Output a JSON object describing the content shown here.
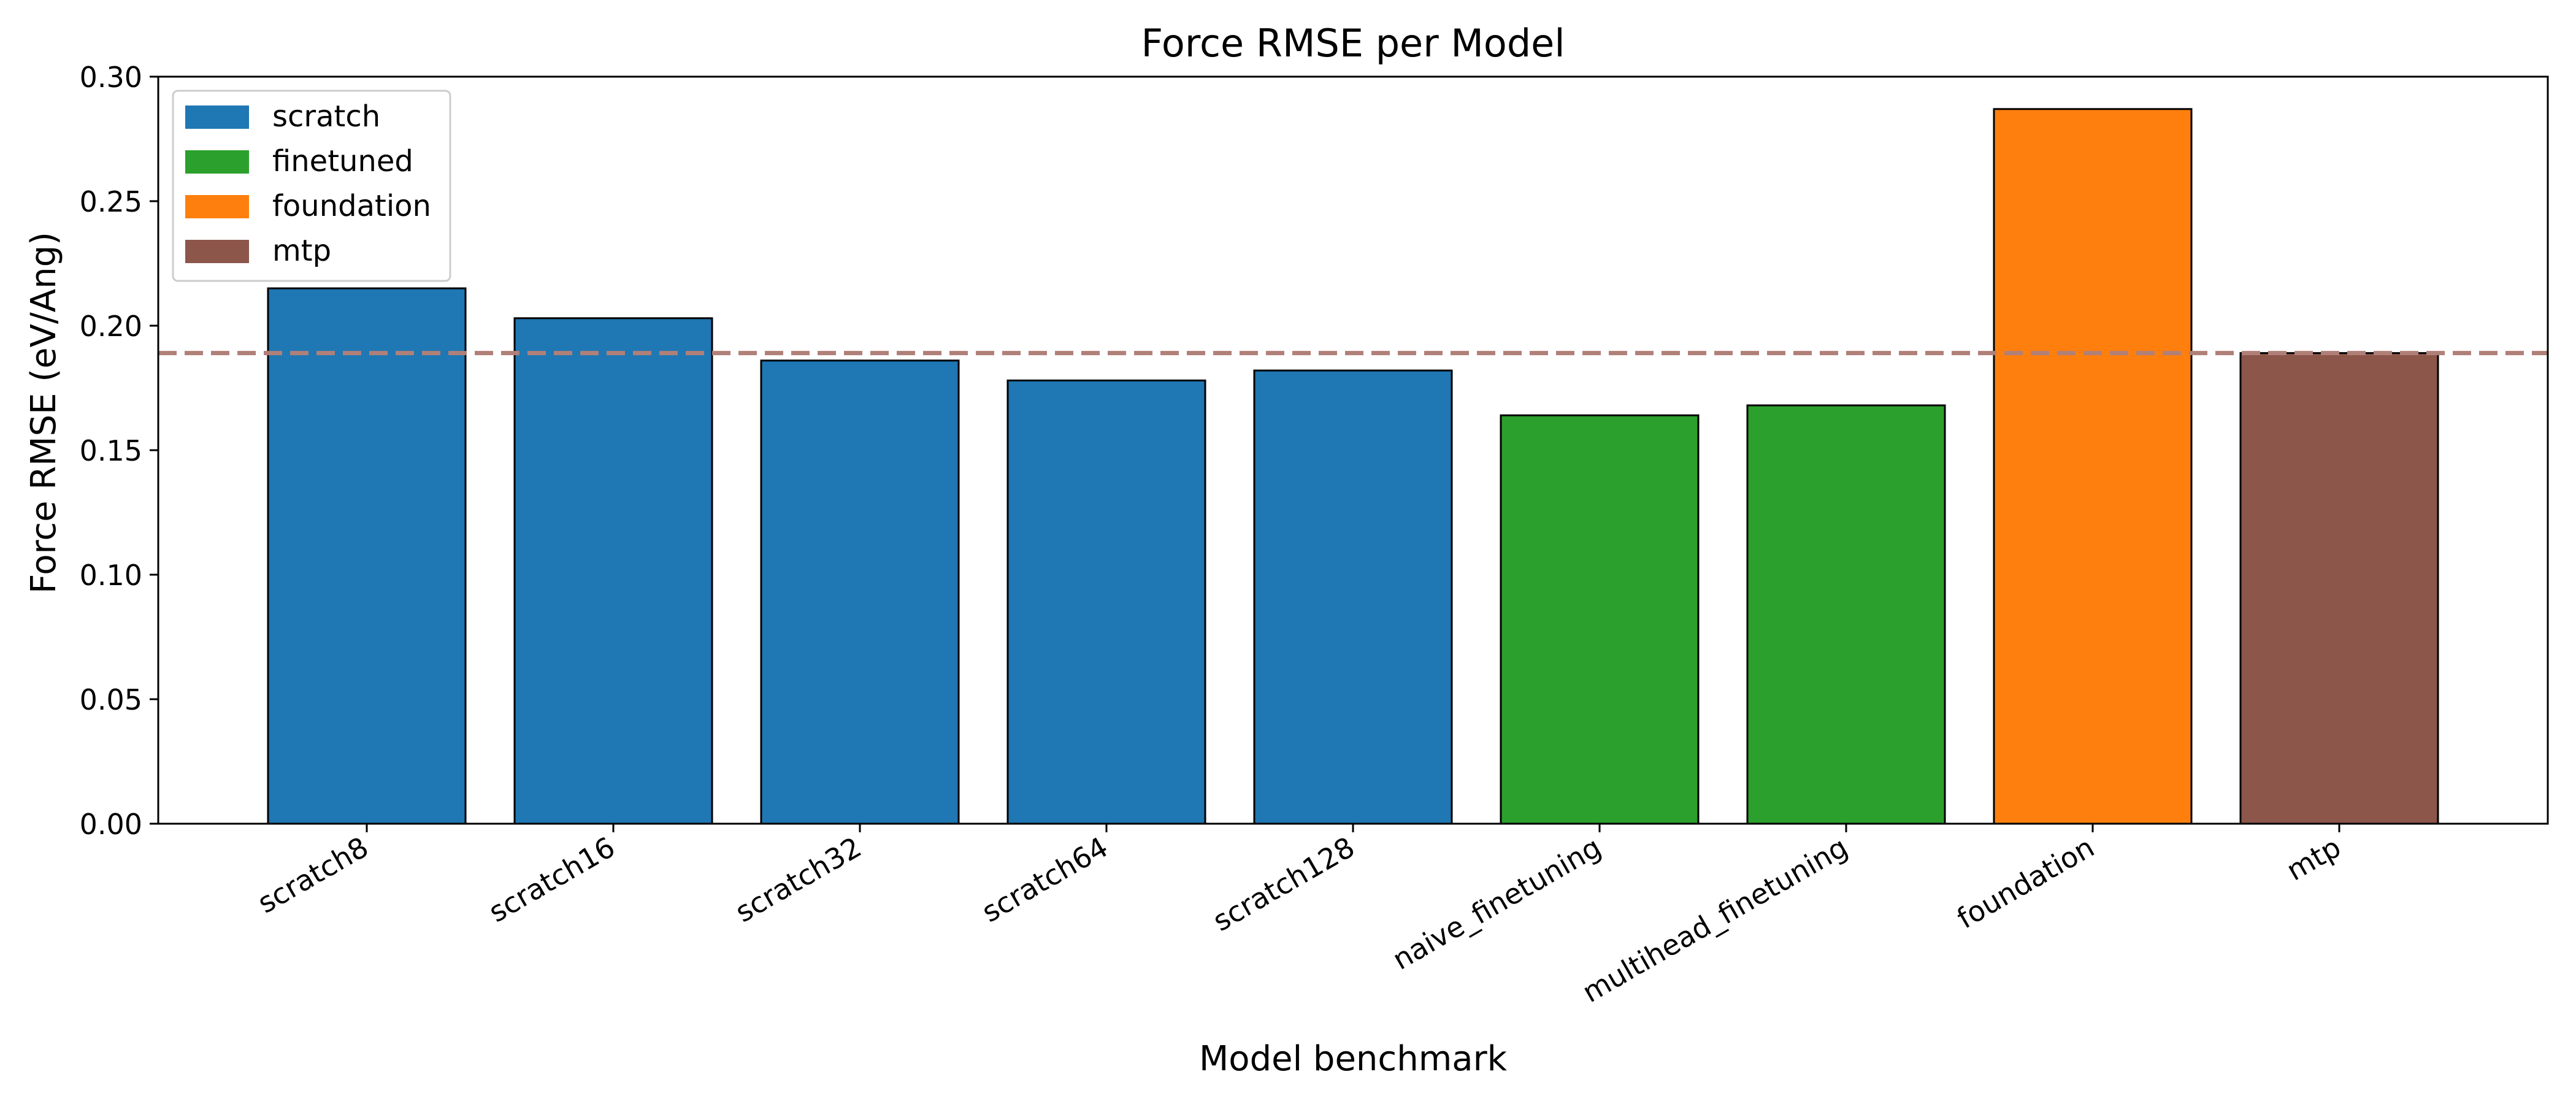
{
  "chart_data": {
    "type": "bar",
    "title": "Force RMSE per Model",
    "xlabel": "Model benchmark",
    "ylabel": "Force RMSE (eV/Ang)",
    "ylim": [
      0,
      0.3
    ],
    "yticks": [
      "0.00",
      "0.05",
      "0.10",
      "0.15",
      "0.20",
      "0.25",
      "0.30"
    ],
    "categories": [
      "scratch8",
      "scratch16",
      "scratch32",
      "scratch64",
      "scratch128",
      "naive_finetuning",
      "multihead_finetuning",
      "foundation",
      "mtp"
    ],
    "values": [
      0.215,
      0.203,
      0.186,
      0.178,
      0.182,
      0.164,
      0.168,
      0.287,
      0.189
    ],
    "groups": [
      "scratch",
      "scratch",
      "scratch",
      "scratch",
      "scratch",
      "finetuned",
      "finetuned",
      "foundation",
      "mtp"
    ],
    "legend": [
      {
        "label": "scratch",
        "color": "#1f77b4"
      },
      {
        "label": "finetuned",
        "color": "#2ca02c"
      },
      {
        "label": "foundation",
        "color": "#ff7f0e"
      },
      {
        "label": "mtp",
        "color": "#8c564b"
      }
    ],
    "legend_position": "top-left",
    "reference_line": {
      "value": 0.189,
      "style": "dashed",
      "color": "#b08078"
    },
    "grid": false
  }
}
